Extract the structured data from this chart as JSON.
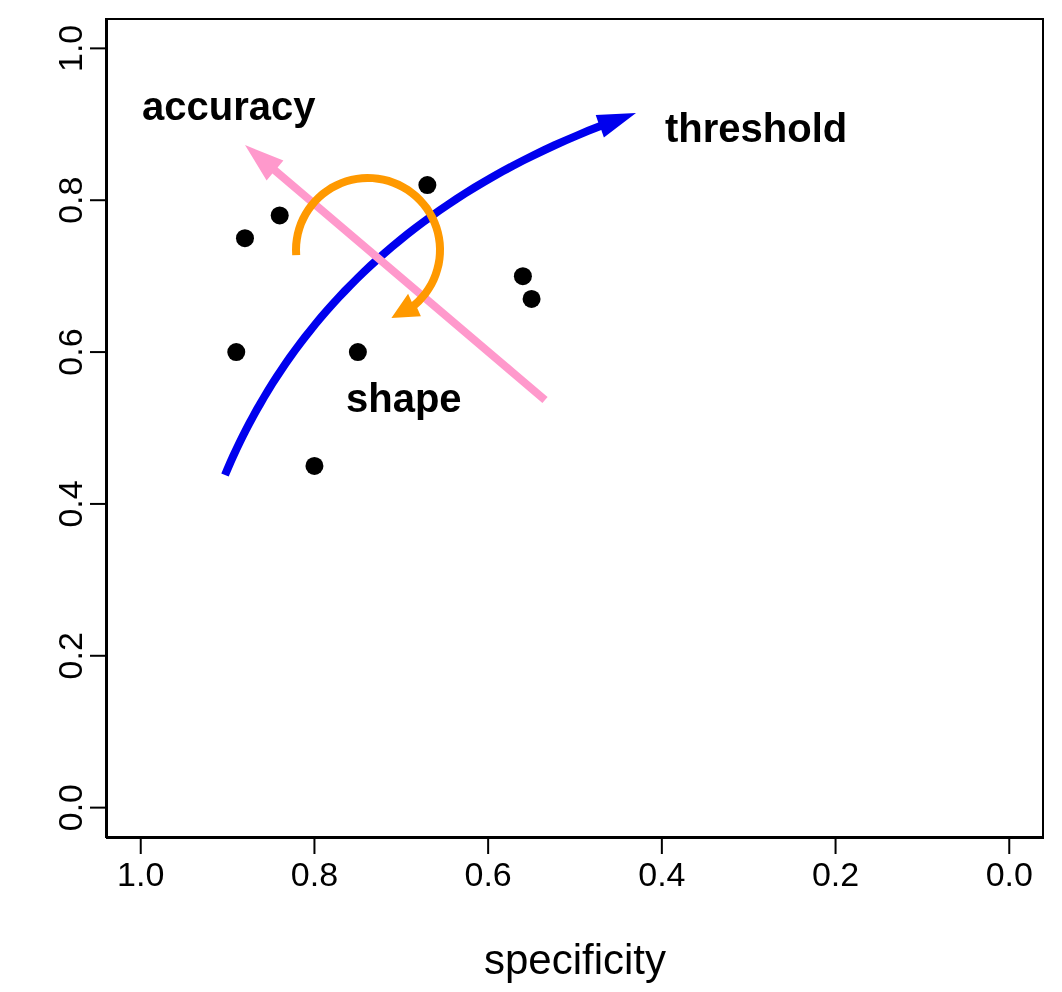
{
  "chart_data": {
    "type": "scatter",
    "xlabel": "specificity",
    "x": [
      0.88,
      0.84,
      0.67,
      0.56,
      0.55,
      0.89,
      0.75,
      0.8
    ],
    "values": [
      0.75,
      0.78,
      0.82,
      0.7,
      0.67,
      0.6,
      0.6,
      0.45
    ],
    "color": "#000000",
    "marker": "circle",
    "xlim": [
      1.04,
      -0.04
    ],
    "ylim": [
      -0.04,
      1.04
    ],
    "xticks": [
      {
        "value": 1,
        "label": "1.0"
      },
      {
        "value": 0.8,
        "label": "0.8"
      },
      {
        "value": 0.6,
        "label": "0.6"
      },
      {
        "value": 0.4,
        "label": "0.4"
      },
      {
        "value": 0.2,
        "label": "0.2"
      },
      {
        "value": 0,
        "label": "0.0"
      }
    ],
    "yticks": [
      {
        "value": 0,
        "label": "0.0"
      },
      {
        "value": 0.2,
        "label": "0.2"
      },
      {
        "value": 0.4,
        "label": "0.4"
      },
      {
        "value": 0.6,
        "label": "0.6"
      },
      {
        "value": 0.8,
        "label": "0.8"
      },
      {
        "value": 1,
        "label": "1.0"
      }
    ],
    "annotations": [
      "accuracy",
      "threshold",
      "shape"
    ]
  }
}
